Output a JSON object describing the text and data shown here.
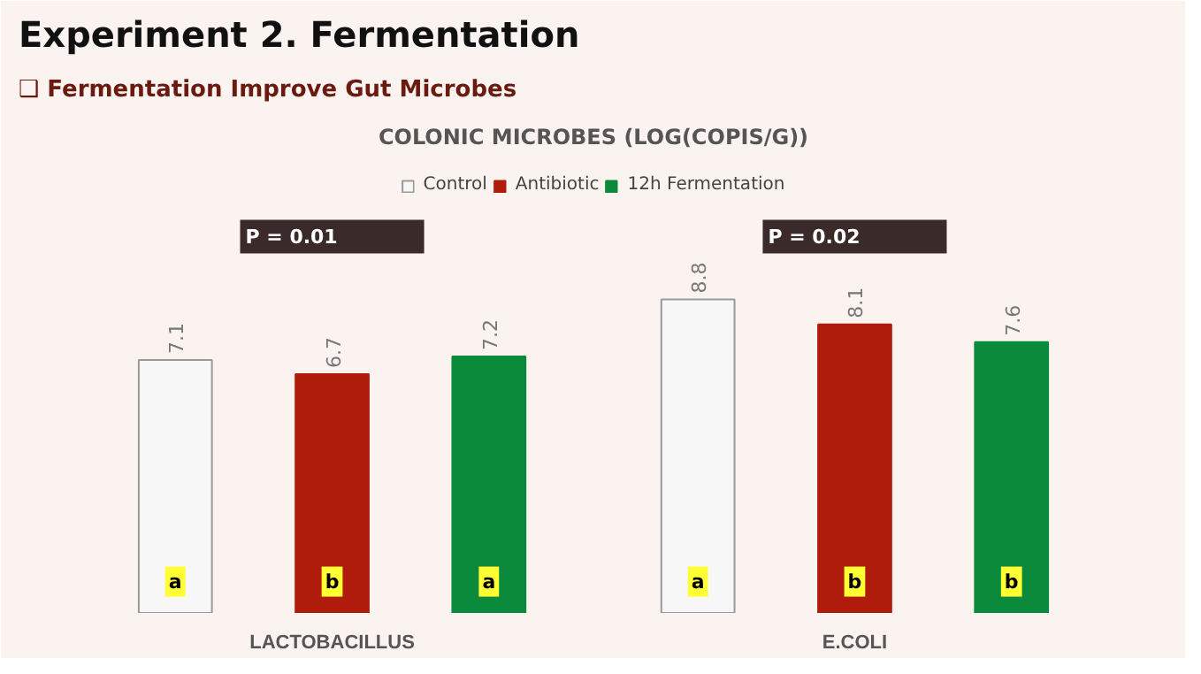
{
  "chart_data": {
    "type": "bar",
    "title": "Experiment 2. Fermentation",
    "subtitle": "❑ Fermentation Improve Gut Microbes",
    "categories": [
      "LACTOBACILLUS",
      "E.COLI"
    ],
    "series": [
      {
        "name": "Control",
        "color": "#f7f7f7",
        "values": [
          7.1,
          8.8
        ]
      },
      {
        "name": "Antibiotic",
        "color": "#b01c0c",
        "values": [
          6.7,
          8.1
        ]
      },
      {
        "name": "12h Fermentation",
        "color": "#0c8a3c",
        "values": [
          7.2,
          7.6
        ]
      }
    ],
    "data_labels": true,
    "legend": "top",
    "annotations": [
      "COLONIC MICROBES (LOG(COPIS/G))",
      "P = 0.01",
      "P = 0.02",
      "a",
      "b",
      "a",
      "a",
      "b",
      "b"
    ]
  }
}
